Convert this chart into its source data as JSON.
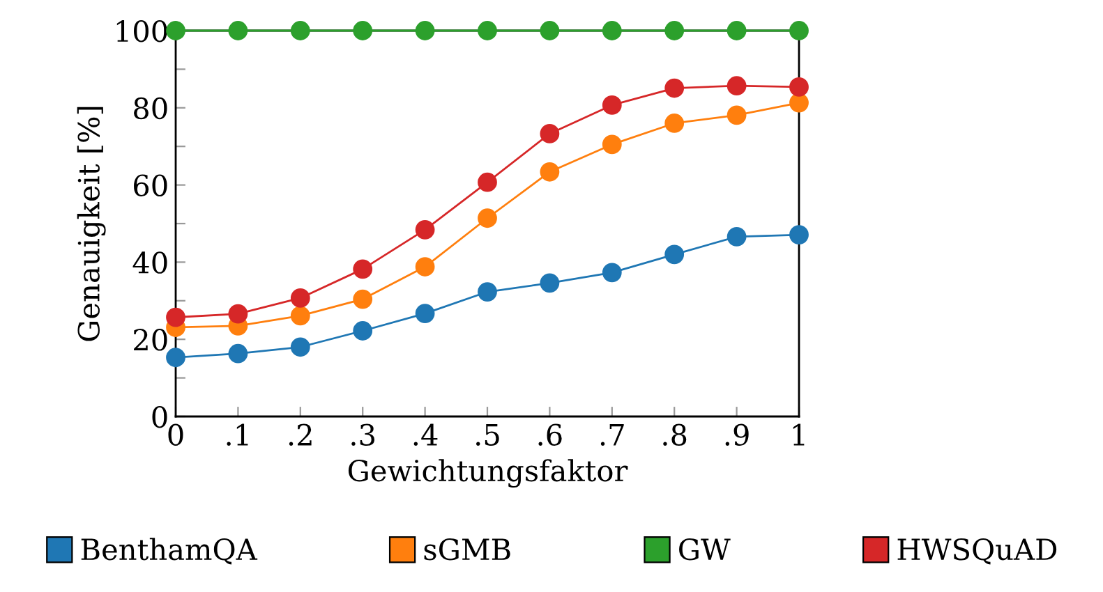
{
  "chart_data": {
    "type": "line",
    "xlabel": "Gewichtungsfaktor",
    "ylabel": "Genauigkeit [%]",
    "x": [
      0,
      0.1,
      0.2,
      0.3,
      0.4,
      0.5,
      0.6,
      0.7,
      0.8,
      0.9,
      1
    ],
    "xlim": [
      0,
      1
    ],
    "xticks": [
      0,
      {
        "value": 0.1,
        "label": ".1"
      },
      {
        "value": 0.2,
        "label": ".2"
      },
      {
        "value": 0.3,
        "label": ".3"
      },
      {
        "value": 0.4,
        "label": ".4"
      },
      {
        "value": 0.5,
        "label": ".5"
      },
      {
        "value": 0.6,
        "label": ".6"
      },
      {
        "value": 0.7,
        "label": ".7"
      },
      {
        "value": 0.8,
        "label": ".8"
      },
      {
        "value": 0.9,
        "label": ".9"
      },
      1
    ],
    "ylim": [
      0,
      100
    ],
    "yticks": [
      0,
      {
        "value": 10,
        "label": null
      },
      20,
      {
        "value": 30,
        "label": null
      },
      40,
      {
        "value": 50,
        "label": null
      },
      60,
      {
        "value": 70,
        "label": null
      },
      80,
      {
        "value": 90,
        "label": null
      },
      100
    ],
    "marker": "circle",
    "line_style": "solid",
    "grid": false,
    "legend": "bottom",
    "series": [
      {
        "name": "BenthamQA",
        "color": "#1f77b4",
        "values": [
          15.3,
          16.3,
          18,
          22.2,
          26.7,
          32.3,
          34.6,
          37.3,
          42,
          46.6,
          47.1
        ]
      },
      {
        "name": "sGMB",
        "color": "#ff7f0e",
        "values": [
          23.1,
          23.5,
          26.1,
          30.4,
          38.8,
          51.4,
          63.4,
          70.5,
          76,
          78.1,
          81.3
        ]
      },
      {
        "name": "GW",
        "color": "#2ca02c",
        "values": [
          100,
          100,
          100,
          100,
          100,
          100,
          100,
          100,
          100,
          100,
          100
        ]
      },
      {
        "name": "HWSQuAD",
        "color": "#d62728",
        "values": [
          25.7,
          26.6,
          30.7,
          38.2,
          48.4,
          60.7,
          73.3,
          80.7,
          85.1,
          85.7,
          85.4
        ]
      }
    ]
  }
}
